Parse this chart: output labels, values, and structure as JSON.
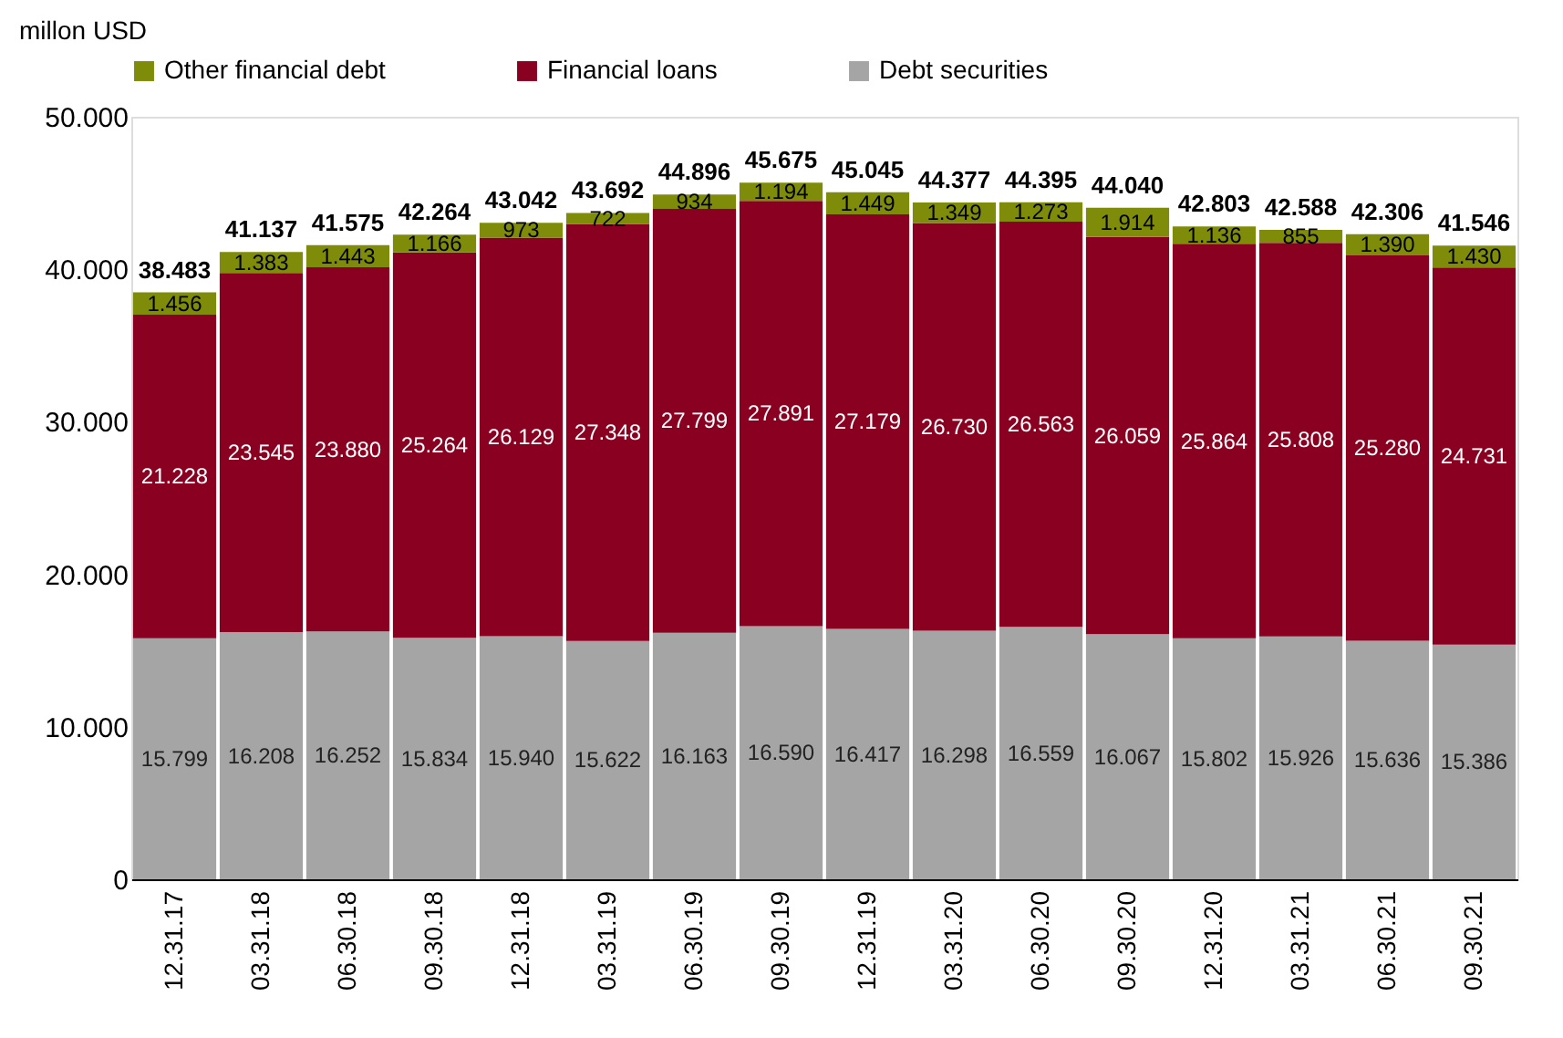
{
  "chart_data": {
    "type": "bar",
    "stacked": true,
    "ylabel": "millon USD",
    "categories": [
      "12.31.17",
      "03.31.18",
      "06.30.18",
      "09.30.18",
      "12.31.18",
      "03.31.19",
      "06.30.19",
      "09.30.19",
      "12.31.19",
      "03.31.20",
      "06.30.20",
      "09.30.20",
      "12.31.20",
      "03.31.21",
      "06.30.21",
      "09.30.21"
    ],
    "series": [
      {
        "name": "Debt securities",
        "color": "#a5a5a5",
        "values": [
          15799,
          16208,
          16252,
          15834,
          15940,
          15622,
          16163,
          16590,
          16417,
          16298,
          16559,
          16067,
          15802,
          15926,
          15636,
          15386
        ],
        "value_labels": [
          "15.799",
          "16.208",
          "16.252",
          "15.834",
          "15.940",
          "15.622",
          "16.163",
          "16.590",
          "16.417",
          "16.298",
          "16.559",
          "16.067",
          "15.802",
          "15.926",
          "15.636",
          "15.386"
        ]
      },
      {
        "name": "Financial loans",
        "color": "#8a0020",
        "values": [
          21228,
          23545,
          23880,
          25264,
          26129,
          27348,
          27799,
          27891,
          27179,
          26730,
          26563,
          26059,
          25864,
          25808,
          25280,
          24731
        ],
        "value_labels": [
          "21.228",
          "23.545",
          "23.880",
          "25.264",
          "26.129",
          "27.348",
          "27.799",
          "27.891",
          "27.179",
          "26.730",
          "26.563",
          "26.059",
          "25.864",
          "25.808",
          "25.280",
          "24.731"
        ]
      },
      {
        "name": "Other financial debt",
        "color": "#7f8c0a",
        "values": [
          1456,
          1383,
          1443,
          1166,
          973,
          722,
          934,
          1194,
          1449,
          1349,
          1273,
          1914,
          1136,
          855,
          1390,
          1430
        ],
        "value_labels": [
          "1.456",
          "1.383",
          "1.443",
          "1.166",
          "973",
          "722",
          "934",
          "1.194",
          "1.449",
          "1.349",
          "1.273",
          "1.914",
          "1.136",
          "855",
          "1.390",
          "1.430"
        ]
      }
    ],
    "totals": [
      "38.483",
      "41.137",
      "41.575",
      "42.264",
      "43.042",
      "43.692",
      "44.896",
      "45.675",
      "45.045",
      "44.377",
      "44.395",
      "44.040",
      "42.803",
      "42.588",
      "42.306",
      "41.546"
    ],
    "ylim": [
      0,
      50000
    ],
    "yticks": [
      0,
      {
        "value": 10000,
        "label": "10.000"
      },
      {
        "value": 20000,
        "label": "20.000"
      },
      {
        "value": 30000,
        "label": "30.000"
      },
      {
        "value": 40000,
        "label": "40.000"
      },
      {
        "value": 50000,
        "label": "50.000"
      }
    ],
    "grid": false,
    "legend": "top"
  }
}
